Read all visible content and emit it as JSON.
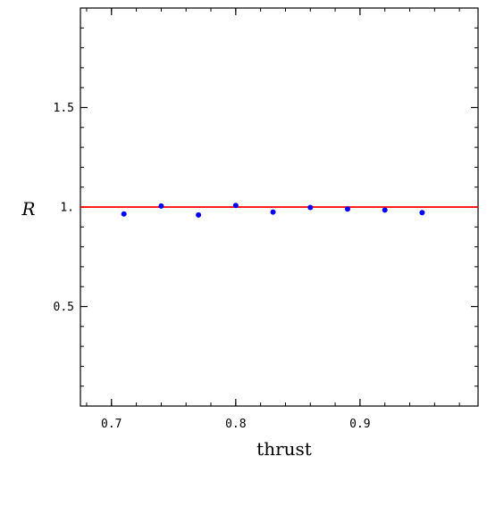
{
  "chart_data": {
    "type": "scatter",
    "title": "",
    "xlabel": "thrust",
    "ylabel": "R",
    "xlim": [
      0.675,
      0.995
    ],
    "ylim": [
      0.0,
      2.0
    ],
    "xticks": [
      0.7,
      0.8,
      0.9
    ],
    "xtick_labels": [
      "0.7",
      "0.8",
      "0.9"
    ],
    "yticks": [
      0.5,
      1.0,
      1.5
    ],
    "ytick_labels": [
      "0.5",
      "1.",
      "1.5"
    ],
    "reference_line": {
      "y": 1.0,
      "color": "#ff0000"
    },
    "series": [
      {
        "color": "#0000ff",
        "x": [
          0.71,
          0.74,
          0.77,
          0.8,
          0.83,
          0.86,
          0.89,
          0.92,
          0.95
        ],
        "y": [
          0.965,
          1.005,
          0.96,
          1.008,
          0.975,
          0.998,
          0.99,
          0.985,
          0.972
        ]
      }
    ],
    "grid": false,
    "legend": "none"
  }
}
